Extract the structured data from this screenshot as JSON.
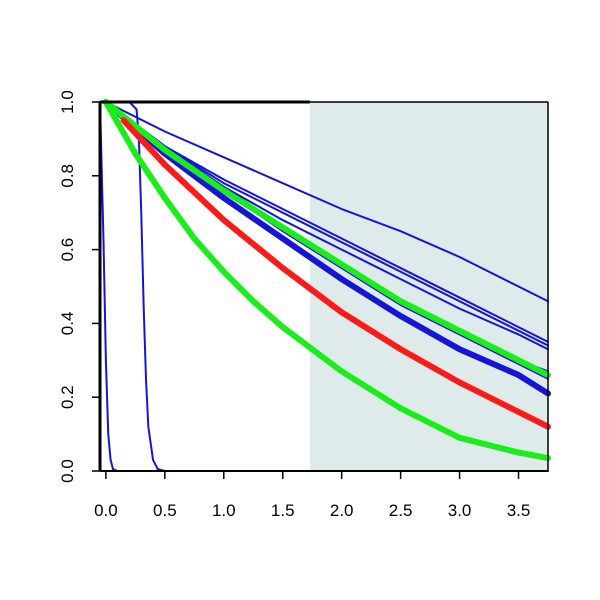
{
  "chart_data": {
    "type": "line",
    "title": "",
    "xlabel": "",
    "ylabel": "",
    "xlim": [
      -0.05,
      3.75
    ],
    "ylim": [
      0.0,
      1.0
    ],
    "grid": false,
    "legend": "none",
    "x_ticks": [
      0.0,
      0.5,
      1.0,
      1.5,
      2.0,
      2.5,
      3.0,
      3.5
    ],
    "x_tick_labels": [
      "0.0",
      "0.5",
      "1.0",
      "1.5",
      "2.0",
      "2.5",
      "3.0",
      "3.5"
    ],
    "y_ticks": [
      0.0,
      0.2,
      0.4,
      0.6,
      0.8,
      1.0
    ],
    "y_tick_labels": [
      "0.0",
      "0.2",
      "0.4",
      "0.6",
      "0.8",
      "1.0"
    ],
    "shaded_region": {
      "x_from": 1.73,
      "x_to": 3.75,
      "color": "#dfeaea"
    },
    "colors": {
      "blue": "#1515d8",
      "red": "#ff1a1a",
      "green": "#1aee1a"
    },
    "series": [
      {
        "color": "blue",
        "weight": "thin",
        "x": [
          -0.05,
          -0.02,
          0.0,
          0.02,
          0.04,
          0.06,
          0.1,
          3.75
        ],
        "y": [
          1.0,
          0.62,
          0.3,
          0.1,
          0.03,
          0.005,
          0.0,
          0.0
        ]
      },
      {
        "color": "blue",
        "weight": "thin",
        "x": [
          -0.05,
          0.1,
          0.2,
          0.26,
          0.28,
          0.3,
          0.32,
          0.34,
          0.36,
          0.4,
          0.44,
          0.5,
          3.75
        ],
        "y": [
          1.0,
          1.0,
          1.0,
          0.98,
          0.9,
          0.7,
          0.45,
          0.25,
          0.12,
          0.03,
          0.005,
          0.0,
          0.0
        ]
      },
      {
        "color": "blue",
        "weight": "thin",
        "x": [
          0.0,
          0.5,
          1.0,
          1.5,
          2.0,
          2.5,
          3.0,
          3.5,
          3.75
        ],
        "y": [
          1.0,
          0.92,
          0.85,
          0.78,
          0.71,
          0.65,
          0.58,
          0.5,
          0.46
        ]
      },
      {
        "color": "blue",
        "weight": "thin",
        "x": [
          0.0,
          0.5,
          1.0,
          1.5,
          2.0,
          2.5,
          3.0,
          3.5,
          3.75
        ],
        "y": [
          1.0,
          0.88,
          0.79,
          0.71,
          0.63,
          0.55,
          0.47,
          0.39,
          0.35
        ]
      },
      {
        "color": "blue",
        "weight": "thin",
        "x": [
          0.0,
          0.5,
          1.0,
          1.5,
          2.0,
          2.5,
          3.0,
          3.5,
          3.75
        ],
        "y": [
          1.0,
          0.88,
          0.78,
          0.7,
          0.62,
          0.54,
          0.46,
          0.38,
          0.34
        ]
      },
      {
        "color": "blue",
        "weight": "thin",
        "x": [
          0.0,
          0.5,
          1.0,
          1.5,
          2.0,
          2.5,
          3.0,
          3.5,
          3.75
        ],
        "y": [
          1.0,
          0.87,
          0.77,
          0.68,
          0.6,
          0.52,
          0.44,
          0.37,
          0.33
        ]
      },
      {
        "color": "blue",
        "weight": "thin",
        "x": [
          0.0,
          0.5,
          1.0,
          1.5,
          2.0,
          2.5,
          3.0,
          3.5,
          3.75
        ],
        "y": [
          1.0,
          0.88,
          0.77,
          0.66,
          0.56,
          0.46,
          0.38,
          0.3,
          0.27
        ]
      },
      {
        "color": "blue",
        "weight": "thin",
        "x": [
          0.0,
          0.5,
          1.0,
          1.5,
          2.0,
          2.5,
          3.0,
          3.5,
          3.75
        ],
        "y": [
          1.0,
          0.88,
          0.76,
          0.65,
          0.55,
          0.45,
          0.37,
          0.29,
          0.25
        ]
      },
      {
        "color": "blue",
        "weight": "thick",
        "x": [
          0.0,
          0.5,
          1.0,
          1.5,
          2.0,
          2.5,
          3.0,
          3.5,
          3.75
        ],
        "y": [
          1.0,
          0.86,
          0.74,
          0.63,
          0.52,
          0.42,
          0.33,
          0.26,
          0.21
        ]
      },
      {
        "color": "green",
        "weight": "thick",
        "x": [
          0.0,
          0.5,
          1.0,
          1.5,
          2.0,
          2.5,
          3.0,
          3.5,
          3.75
        ],
        "y": [
          1.0,
          0.87,
          0.76,
          0.66,
          0.56,
          0.46,
          0.38,
          0.3,
          0.26
        ]
      },
      {
        "color": "red",
        "weight": "thick",
        "x": [
          0.15,
          0.5,
          1.0,
          1.5,
          2.0,
          2.5,
          3.0,
          3.5,
          3.75
        ],
        "y": [
          0.95,
          0.83,
          0.68,
          0.55,
          0.43,
          0.33,
          0.24,
          0.16,
          0.12
        ]
      },
      {
        "color": "green",
        "weight": "thick",
        "x": [
          0.0,
          0.25,
          0.5,
          0.75,
          1.0,
          1.25,
          1.5,
          1.75,
          2.0,
          2.5,
          3.0,
          3.5,
          3.75
        ],
        "y": [
          1.0,
          0.86,
          0.74,
          0.63,
          0.54,
          0.46,
          0.39,
          0.33,
          0.27,
          0.17,
          0.09,
          0.05,
          0.035
        ]
      }
    ]
  }
}
